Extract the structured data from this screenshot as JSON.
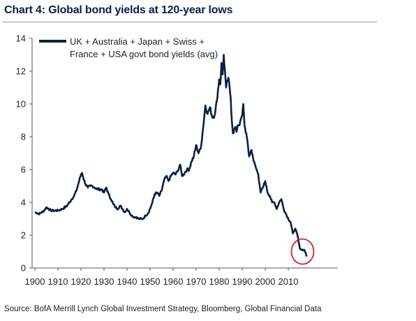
{
  "header": {
    "title": "Chart 4: Global bond yields at 120-year lows"
  },
  "footer": {
    "source": "Source: BofA Merrill Lynch Global Investment Strategy, Bloomberg, Global Financial Data"
  },
  "chart_data": {
    "type": "line",
    "title": "Chart 4: Global bond yields at 120-year lows",
    "xlabel": "",
    "ylabel": "",
    "xlim": [
      1900,
      2019
    ],
    "ylim": [
      0,
      14
    ],
    "xticks": [
      1900,
      1910,
      1920,
      1930,
      1940,
      1950,
      1960,
      1970,
      1980,
      1990,
      2000,
      2010
    ],
    "yticks": [
      0,
      2,
      4,
      6,
      8,
      10,
      12,
      14
    ],
    "grid": false,
    "legend_position": "top-left",
    "line_color": "#0b1f44",
    "highlight_color": "#d6202a",
    "legend_lines": [
      "UK + Australia + Japan + Swiss +",
      "France + USA govt bond yields (avg)"
    ],
    "series": [
      {
        "name": "UK + Australia + Japan + Swiss + France + USA govt bond yields (avg)",
        "x": [
          1900,
          1902,
          1904,
          1905,
          1907,
          1908,
          1910,
          1912,
          1914,
          1916,
          1917,
          1918,
          1919,
          1920,
          1920.5,
          1921,
          1922,
          1923,
          1924,
          1925,
          1926,
          1927,
          1928,
          1929,
          1930,
          1931,
          1932,
          1933,
          1934,
          1935,
          1936,
          1937,
          1938,
          1939,
          1940,
          1941,
          1942,
          1943,
          1944,
          1945,
          1946,
          1947,
          1948,
          1949,
          1950,
          1951,
          1952,
          1953,
          1954,
          1955,
          1956,
          1957,
          1958,
          1959,
          1960,
          1961,
          1962,
          1963,
          1964,
          1965,
          1966,
          1967,
          1968,
          1969,
          1970,
          1971,
          1972,
          1973,
          1974,
          1975,
          1976,
          1977,
          1978,
          1979,
          1980,
          1980.5,
          1981,
          1981.5,
          1982,
          1982.5,
          1983,
          1984,
          1985,
          1985.5,
          1986,
          1987,
          1987.5,
          1988,
          1989,
          1990,
          1990.5,
          1991,
          1992,
          1993,
          1994,
          1994.5,
          1995,
          1996,
          1997,
          1998,
          1999,
          2000,
          2001,
          2002,
          2003,
          2004,
          2005,
          2006,
          2007,
          2008,
          2009,
          2010,
          2011,
          2012,
          2013,
          2014,
          2015,
          2016,
          2017,
          2018
        ],
        "values": [
          3.4,
          3.3,
          3.5,
          3.7,
          3.5,
          3.5,
          3.5,
          3.6,
          3.8,
          4.2,
          4.4,
          4.7,
          5.2,
          5.7,
          5.8,
          5.5,
          5.1,
          4.9,
          5.0,
          5.0,
          4.9,
          4.8,
          4.8,
          4.8,
          4.6,
          4.9,
          4.5,
          4.2,
          3.9,
          3.7,
          3.6,
          3.8,
          3.6,
          3.4,
          3.6,
          3.4,
          3.2,
          3.1,
          3.1,
          3.0,
          3.0,
          3.0,
          3.2,
          3.3,
          3.6,
          4.0,
          4.5,
          4.6,
          4.4,
          4.7,
          5.3,
          5.6,
          5.3,
          5.6,
          5.8,
          5.7,
          5.9,
          6.3,
          5.6,
          5.8,
          6.0,
          6.0,
          6.5,
          6.8,
          7.5,
          7.0,
          7.3,
          8.5,
          9.9,
          9.4,
          9.8,
          9.2,
          9.3,
          10.2,
          11.5,
          11.2,
          12.5,
          11.8,
          13.0,
          12.0,
          11.0,
          11.6,
          10.4,
          9.0,
          8.2,
          8.6,
          8.3,
          8.7,
          8.8,
          9.3,
          10.0,
          8.7,
          8.0,
          6.8,
          7.2,
          6.9,
          6.5,
          6.1,
          5.7,
          4.6,
          4.9,
          5.3,
          4.6,
          4.4,
          4.0,
          4.0,
          3.6,
          4.0,
          4.2,
          3.6,
          3.3,
          3.0,
          2.8,
          2.1,
          2.4,
          2.0,
          1.2,
          1.1,
          1.1,
          0.7
        ]
      }
    ]
  }
}
